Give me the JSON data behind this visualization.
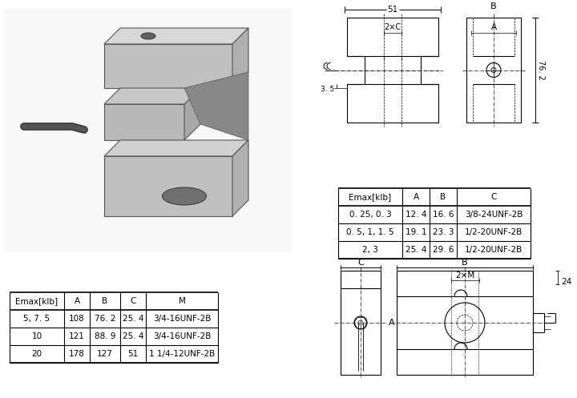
{
  "bg_color": "#ffffff",
  "table1_headers": [
    "Emax[klb]",
    "A",
    "B",
    "C"
  ],
  "table1_rows": [
    [
      "0. 25, 0. 3",
      "12. 4",
      "16. 6",
      "3/8-24UNF-2B"
    ],
    [
      "0. 5, 1, 1. 5",
      "19. 1",
      "23. 3",
      "1/2-20UNF-2B"
    ],
    [
      "2, 3",
      "25. 4",
      "29. 6",
      "1/2-20UNF-2B"
    ]
  ],
  "table2_headers": [
    "Emax[klb]",
    "A",
    "B",
    "C",
    "M"
  ],
  "table2_rows": [
    [
      "5, 7. 5",
      "108",
      "76. 2",
      "25. 4",
      "3/4-16UNF-2B"
    ],
    [
      "10",
      "121",
      "88. 9",
      "25. 4",
      "3/4-16UNF-2B"
    ],
    [
      "20",
      "178",
      "127",
      "51",
      "1 1/4-12UNF-2B"
    ]
  ],
  "dim_51": "51",
  "dim_B_top": "B",
  "dim_A_top": "A",
  "dim_2xC": "2×C",
  "dim_3_5": "3. 5",
  "dim_76_2": "76. 2",
  "dim_C_bottom": "C",
  "dim_B_bottom": "B",
  "dim_2xM": "2×M",
  "dim_24": "24",
  "dim_A_bottom": "A"
}
